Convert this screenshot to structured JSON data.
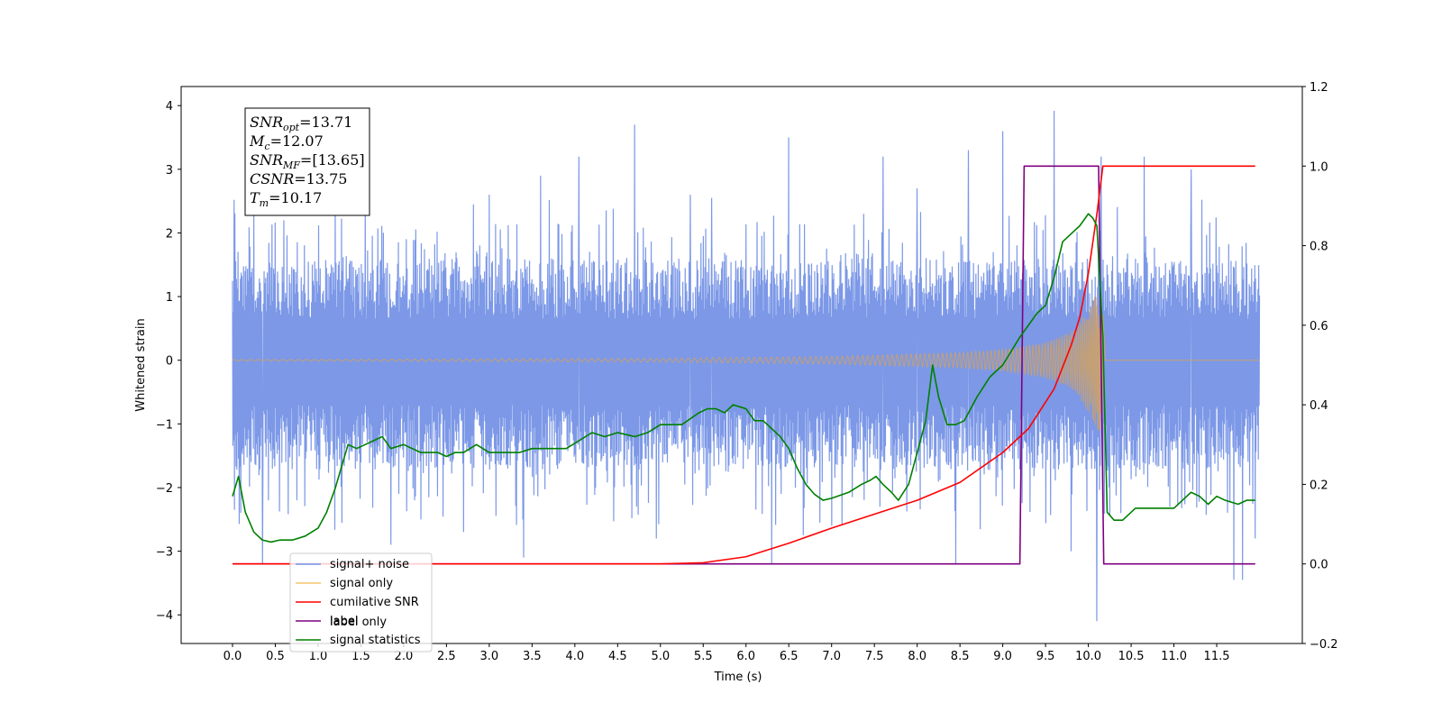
{
  "chart_data": {
    "type": "line",
    "xlabel": "Time (s)",
    "ylabel": "Whitened strain",
    "xlim": [
      -0.6,
      12.5
    ],
    "ylim_left": [
      -4.45,
      4.3
    ],
    "ylim_right": [
      -0.2,
      1.2
    ],
    "x_ticks": [
      0.0,
      0.5,
      1.0,
      1.5,
      2.0,
      2.5,
      3.0,
      3.5,
      4.0,
      4.5,
      5.0,
      5.5,
      6.0,
      6.5,
      7.0,
      7.5,
      8.0,
      8.5,
      9.0,
      9.5,
      10.0,
      10.5,
      11.0,
      11.5
    ],
    "x_tick_labels": [
      "0.0",
      "0.5",
      "1.0",
      "1.5",
      "2.0",
      "2.5",
      "3.0",
      "3.5",
      "4.0",
      "4.5",
      "5.0",
      "5.5",
      "6.0",
      "6.5",
      "7.0",
      "7.5",
      "8.0",
      "8.5",
      "9.0",
      "9.5",
      "10.0",
      "10.5",
      "11.0",
      "11.5"
    ],
    "y_ticks_left": [
      -4,
      -3,
      -2,
      -1,
      0,
      1,
      2,
      3,
      4
    ],
    "y_ticks_right": [
      -0.2,
      0.0,
      0.2,
      0.4,
      0.6,
      0.8,
      1.0,
      1.2
    ],
    "y_ticks_right_labels": [
      "−0.2",
      "0.0",
      "0.2",
      "0.4",
      "0.6",
      "0.8",
      "1.0",
      "1.2"
    ],
    "grid": false,
    "legend_position": "bottom-left",
    "annotation": [
      {
        "base": "SNR",
        "sub": "opt",
        "value": "=13.71"
      },
      {
        "base": "M",
        "sub": "c",
        "value": "=12.07"
      },
      {
        "base": "SNR",
        "sub": "MF",
        "value": "=[13.65]"
      },
      {
        "base": "CSNR",
        "sub": "",
        "value": "=13.75"
      },
      {
        "base": "T",
        "sub": "m",
        "value": "=10.17"
      }
    ],
    "series": [
      {
        "name": "signal+ noise",
        "axis": "left",
        "color": "#7592e6",
        "kind": "noise",
        "x_range": [
          0.0,
          12.0
        ],
        "typical_envelope": [
          -1.4,
          1.3
        ],
        "peaks": [
          {
            "x": 0.02,
            "y": 2.52
          },
          {
            "x": 0.05,
            "y": -1.72
          },
          {
            "x": 0.35,
            "y": -3.2
          },
          {
            "x": 0.6,
            "y": 2.2
          },
          {
            "x": 1.2,
            "y": 2.5
          },
          {
            "x": 1.55,
            "y": 2.6
          },
          {
            "x": 1.85,
            "y": -2.9
          },
          {
            "x": 2.2,
            "y": -2.5
          },
          {
            "x": 2.7,
            "y": -2.7
          },
          {
            "x": 3.0,
            "y": 2.6
          },
          {
            "x": 3.4,
            "y": -3.1
          },
          {
            "x": 3.6,
            "y": 2.9
          },
          {
            "x": 4.05,
            "y": 3.2
          },
          {
            "x": 4.7,
            "y": 3.7
          },
          {
            "x": 4.95,
            "y": -2.8
          },
          {
            "x": 5.35,
            "y": 2.6
          },
          {
            "x": 5.6,
            "y": 2.55
          },
          {
            "x": 6.3,
            "y": -3.2
          },
          {
            "x": 6.5,
            "y": 3.5
          },
          {
            "x": 7.0,
            "y": -2.6
          },
          {
            "x": 7.6,
            "y": 3.2
          },
          {
            "x": 8.0,
            "y": 2.7
          },
          {
            "x": 8.45,
            "y": -3.2
          },
          {
            "x": 8.6,
            "y": 3.3
          },
          {
            "x": 9.0,
            "y": 3.6
          },
          {
            "x": 9.6,
            "y": 3.92
          },
          {
            "x": 9.8,
            "y": -3.0
          },
          {
            "x": 10.1,
            "y": -4.1
          },
          {
            "x": 10.15,
            "y": 3.2
          },
          {
            "x": 10.65,
            "y": 3.2
          },
          {
            "x": 11.2,
            "y": 3.0
          },
          {
            "x": 11.7,
            "y": -3.45
          },
          {
            "x": 11.8,
            "y": -3.45
          },
          {
            "x": 11.95,
            "y": -2.8
          }
        ]
      },
      {
        "name": "signal only",
        "axis": "left",
        "color": "#c8a070",
        "kind": "chirp",
        "x_range": [
          0.0,
          10.17
        ],
        "merger_time": 10.17,
        "peak_amplitude": 1.25,
        "amplitude_samples": [
          [
            0.0,
            0.01
          ],
          [
            5.0,
            0.03
          ],
          [
            7.0,
            0.06
          ],
          [
            8.5,
            0.12
          ],
          [
            9.0,
            0.17
          ],
          [
            9.5,
            0.28
          ],
          [
            9.8,
            0.45
          ],
          [
            10.0,
            0.8
          ],
          [
            10.17,
            1.25
          ]
        ]
      },
      {
        "name": "cumilative SNR",
        "axis": "right",
        "color": "#ff0000",
        "x": [
          0.0,
          5.0,
          5.5,
          6.0,
          6.5,
          7.0,
          7.5,
          8.0,
          8.5,
          9.0,
          9.3,
          9.6,
          9.8,
          9.9,
          10.0,
          10.1,
          10.17,
          11.95
        ],
        "y": [
          0.0,
          0.0,
          0.003,
          0.018,
          0.052,
          0.09,
          0.125,
          0.16,
          0.205,
          0.28,
          0.34,
          0.44,
          0.55,
          0.62,
          0.73,
          0.88,
          1.0,
          1.0
        ]
      },
      {
        "name": "label",
        "axis": "right",
        "color": "#7f0080",
        "x": [
          0.0,
          9.2,
          9.25,
          10.12,
          10.18,
          11.95
        ],
        "y": [
          0.0,
          0.0,
          1.0,
          1.0,
          0.0,
          0.0
        ]
      },
      {
        "name": "label only",
        "axis": "right",
        "color": "#c0c0c0",
        "hidden": true
      },
      {
        "name": "signal statistics",
        "axis": "right",
        "color": "#008000",
        "x": [
          0.0,
          0.07,
          0.15,
          0.25,
          0.35,
          0.45,
          0.55,
          0.7,
          0.85,
          1.0,
          1.1,
          1.2,
          1.35,
          1.45,
          1.55,
          1.65,
          1.75,
          1.85,
          2.0,
          2.2,
          2.4,
          2.5,
          2.6,
          2.7,
          2.85,
          3.0,
          3.2,
          3.35,
          3.5,
          3.65,
          3.75,
          3.9,
          4.05,
          4.2,
          4.35,
          4.5,
          4.7,
          4.85,
          5.0,
          5.1,
          5.25,
          5.45,
          5.55,
          5.65,
          5.75,
          5.85,
          6.0,
          6.1,
          6.2,
          6.3,
          6.4,
          6.5,
          6.6,
          6.7,
          6.8,
          6.9,
          7.0,
          7.2,
          7.35,
          7.45,
          7.52,
          7.6,
          7.7,
          7.78,
          7.9,
          8.0,
          8.1,
          8.18,
          8.25,
          8.35,
          8.45,
          8.55,
          8.7,
          8.85,
          9.0,
          9.2,
          9.3,
          9.4,
          9.5,
          9.6,
          9.7,
          9.8,
          9.9,
          10.0,
          10.05,
          10.1,
          10.17,
          10.22,
          10.3,
          10.4,
          10.55,
          10.7,
          10.85,
          11.0,
          11.1,
          11.2,
          11.3,
          11.4,
          11.5,
          11.6,
          11.75,
          11.85,
          11.95
        ],
        "y": [
          0.17,
          0.22,
          0.13,
          0.08,
          0.06,
          0.055,
          0.06,
          0.06,
          0.07,
          0.09,
          0.13,
          0.19,
          0.3,
          0.29,
          0.3,
          0.31,
          0.32,
          0.29,
          0.3,
          0.28,
          0.28,
          0.27,
          0.28,
          0.28,
          0.3,
          0.28,
          0.28,
          0.28,
          0.29,
          0.29,
          0.29,
          0.29,
          0.31,
          0.33,
          0.32,
          0.33,
          0.32,
          0.33,
          0.35,
          0.35,
          0.35,
          0.38,
          0.39,
          0.39,
          0.38,
          0.4,
          0.39,
          0.36,
          0.36,
          0.34,
          0.32,
          0.29,
          0.24,
          0.2,
          0.175,
          0.16,
          0.165,
          0.18,
          0.2,
          0.21,
          0.22,
          0.2,
          0.18,
          0.16,
          0.2,
          0.28,
          0.36,
          0.5,
          0.42,
          0.35,
          0.35,
          0.36,
          0.42,
          0.47,
          0.5,
          0.57,
          0.6,
          0.63,
          0.65,
          0.72,
          0.81,
          0.83,
          0.85,
          0.88,
          0.87,
          0.85,
          0.57,
          0.13,
          0.11,
          0.11,
          0.14,
          0.14,
          0.14,
          0.14,
          0.16,
          0.18,
          0.17,
          0.15,
          0.17,
          0.16,
          0.15,
          0.16,
          0.16
        ]
      }
    ]
  }
}
